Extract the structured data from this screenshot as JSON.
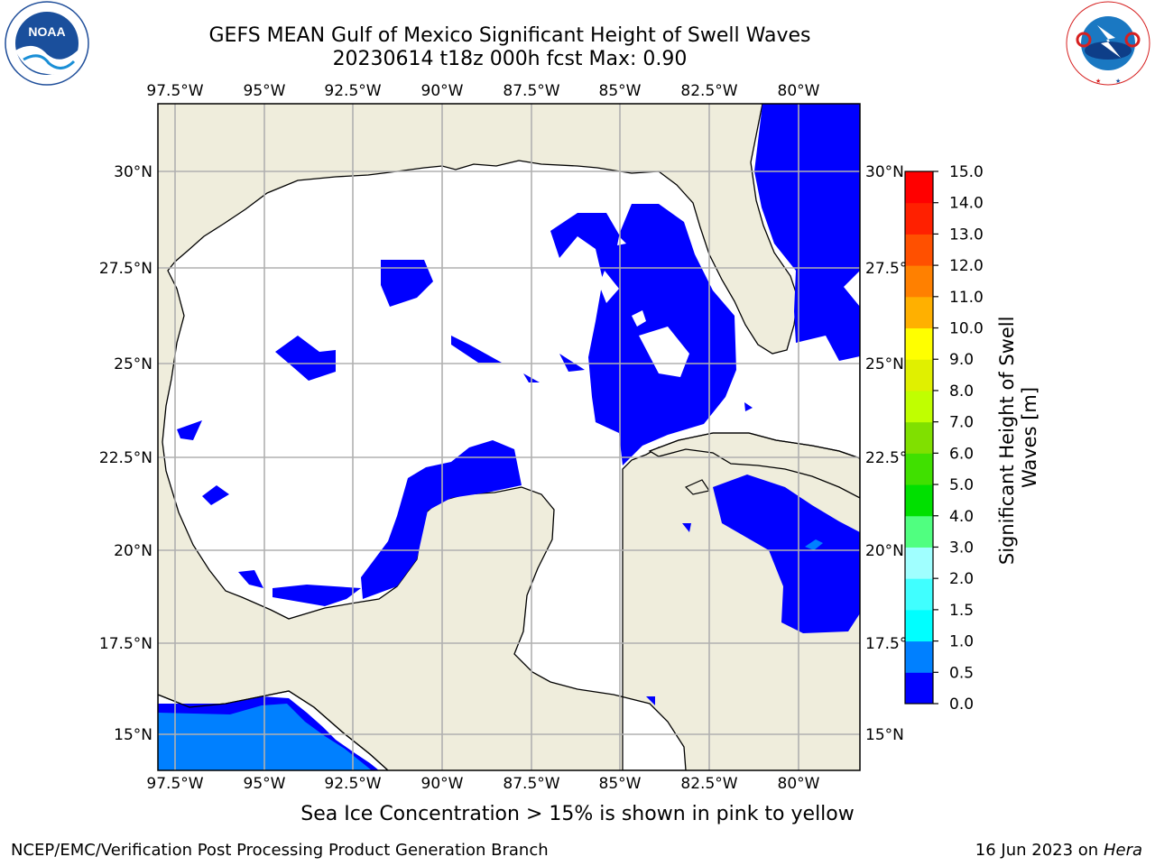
{
  "header": {
    "title_line1": "GEFS MEAN Gulf of Mexico Significant Height of Swell Waves",
    "title_line2": "20230614 t18z 000h fcst   Max: 0.90"
  },
  "logos": {
    "left": "NOAA",
    "left_ring_text": "NATIONAL OCEANIC AND ATMOSPHERIC ADMINISTRATION · U.S. DEPARTMENT OF COMMERCE",
    "right_ring_text": "NATIONAL WEATHER SERVICE"
  },
  "map": {
    "lon_labels": [
      "97.5°W",
      "95°W",
      "92.5°W",
      "90°W",
      "87.5°W",
      "85°W",
      "82.5°W",
      "80°W"
    ],
    "lat_labels_left": [
      "30°N",
      "27.5°N",
      "25°N",
      "22.5°N",
      "20°N",
      "17.5°N",
      "15°N"
    ],
    "lat_labels_right": [
      "30°N",
      "27.5°N",
      "25°N",
      "22.5°N",
      "20°N",
      "17.5°N",
      "15°N"
    ],
    "colors": {
      "land": "#efeddc",
      "ocean": "#ffffff",
      "grid": "#b0b0b0",
      "swell_low": "#0000ff",
      "swell_05": "#0080ff"
    }
  },
  "colorbar": {
    "label": "Significant Height of Swell Waves [m]",
    "ticks": [
      "0.0",
      "0.5",
      "1.0",
      "1.5",
      "2.0",
      "3.0",
      "4.0",
      "5.0",
      "6.0",
      "7.0",
      "8.0",
      "9.0",
      "10.0",
      "11.0",
      "12.0",
      "13.0",
      "14.0",
      "15.0"
    ],
    "colors": [
      "#0000ff",
      "#0080ff",
      "#00ffff",
      "#40ffff",
      "#80ffff",
      "#a0ffff",
      "#50ff80",
      "#00e000",
      "#40e000",
      "#80e000",
      "#c0ff00",
      "#e0f000",
      "#ffff00",
      "#ffe000",
      "#ffb000",
      "#ff8000",
      "#ff5000",
      "#ff2000",
      "#ff0000"
    ]
  },
  "caption": "Sea Ice Concentration > 15% is shown in pink to yellow",
  "footer": {
    "left": "NCEP/EMC/Verification Post Processing Product Generation Branch",
    "right_date": "16 Jun 2023 on",
    "right_host": "Hera"
  }
}
